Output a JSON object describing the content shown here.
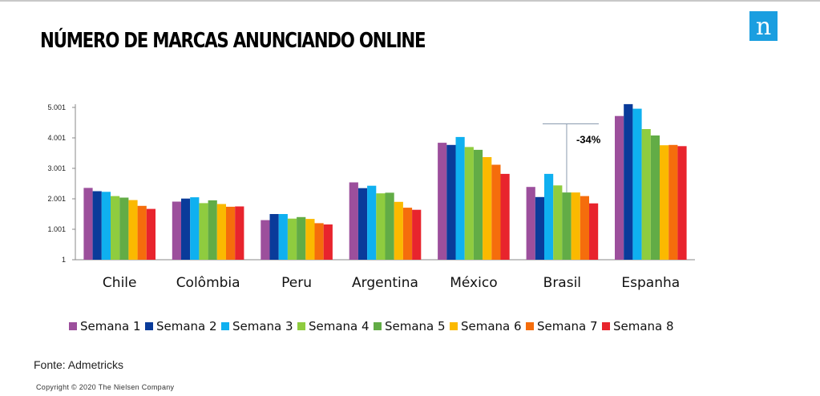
{
  "title": "NÚMERO DE MARCAS ANUNCIANDO ONLINE",
  "logo": {
    "color": "#1a9ee0",
    "icon": "nielsen-n-logo",
    "letter": "n"
  },
  "source": "Fonte: Admetricks",
  "copyright": "Copyright © 2020 The Nielsen Company",
  "chart_data": {
    "type": "bar",
    "title": "",
    "xlabel": "",
    "ylabel": "",
    "ylim": [
      1,
      5001
    ],
    "yticks": [
      1,
      1001,
      2001,
      3001,
      4001,
      5001
    ],
    "ytick_labels": [
      "1",
      "1.001",
      "2.001",
      "3.001",
      "4.001",
      "5.001"
    ],
    "grid": false,
    "legend_position": "bottom",
    "categories": [
      "Chile",
      "Colômbia",
      "Peru",
      "Argentina",
      "México",
      "Brasil",
      "Espanha"
    ],
    "series": [
      {
        "name": "Semana 1",
        "color": "#9c4f9c",
        "values": [
          2360,
          1910,
          1300,
          2540,
          3840,
          2390,
          4720
        ]
      },
      {
        "name": "Semana 2",
        "color": "#0a3b9a",
        "values": [
          2250,
          2010,
          1500,
          2350,
          3770,
          2060,
          5110
        ]
      },
      {
        "name": "Semana 3",
        "color": "#0fb0f0",
        "values": [
          2230,
          2050,
          1500,
          2430,
          4030,
          2820,
          4960
        ]
      },
      {
        "name": "Semana 4",
        "color": "#8fcc3f",
        "values": [
          2090,
          1860,
          1350,
          2180,
          3700,
          2440,
          4290
        ]
      },
      {
        "name": "Semana 5",
        "color": "#62ac46",
        "values": [
          2040,
          1950,
          1400,
          2200,
          3610,
          2210,
          4080
        ]
      },
      {
        "name": "Semana 6",
        "color": "#fbb900",
        "values": [
          1960,
          1830,
          1340,
          1900,
          3370,
          2210,
          3760
        ]
      },
      {
        "name": "Semana 7",
        "color": "#f56d0c",
        "values": [
          1770,
          1740,
          1200,
          1710,
          3120,
          2090,
          3770
        ]
      },
      {
        "name": "Semana 8",
        "color": "#e8242d",
        "values": [
          1670,
          1750,
          1160,
          1640,
          2820,
          1850,
          3730
        ]
      }
    ],
    "annotation": {
      "text": "-34%",
      "category": "Brasil",
      "from_value": 4460,
      "to_value": 2210
    }
  }
}
